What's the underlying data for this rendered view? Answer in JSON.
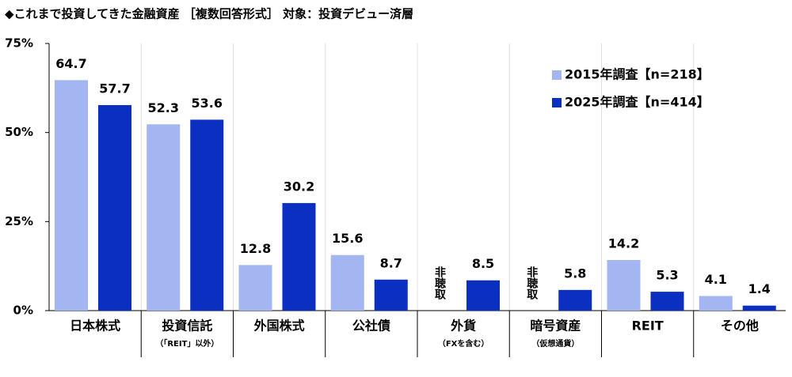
{
  "chart_data": {
    "type": "bar",
    "title": "◆これまで投資してきた金融資産 ［複数回答形式］ 対象：投資デビュー済層",
    "categories": [
      "日本株式",
      "投資信託",
      "外国株式",
      "公社債",
      "外貨",
      "暗号資産",
      "REIT",
      "その他"
    ],
    "category_notes": [
      null,
      "（「REIT」以外）",
      null,
      null,
      "（FXを含む）",
      "（仮想通貨）",
      null,
      null
    ],
    "series": [
      {
        "name": "2015年調査【n=218】",
        "color": "#a3b6f2",
        "values": [
          64.7,
          52.3,
          12.8,
          15.6,
          null,
          null,
          14.2,
          4.1
        ],
        "value_labels": [
          null,
          null,
          null,
          null,
          "非聴取",
          "非聴取",
          null,
          null
        ]
      },
      {
        "name": "2025年調査【n=414】",
        "color": "#0b2fc0",
        "values": [
          57.7,
          53.6,
          30.2,
          8.7,
          8.5,
          5.8,
          5.3,
          1.4
        ]
      }
    ],
    "ylim": [
      0,
      75
    ],
    "yticks": [
      {
        "value": 0,
        "label": "0%"
      },
      {
        "value": 25,
        "label": "25%"
      },
      {
        "value": 50,
        "label": "50%"
      },
      {
        "value": 75,
        "label": "75%"
      }
    ]
  }
}
